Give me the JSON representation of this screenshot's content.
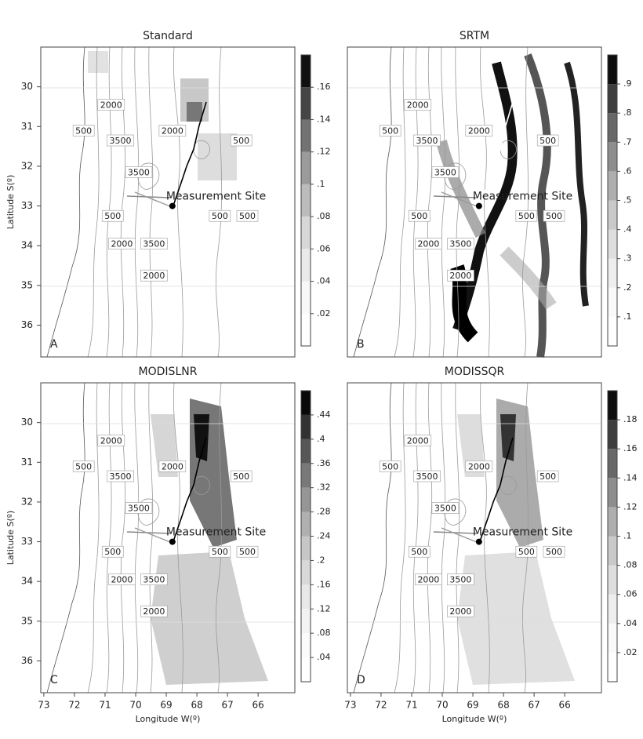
{
  "chart_data": [
    {
      "type": "contour-map",
      "title": "Standard",
      "panel_label": "A",
      "xlim": [
        73.1,
        64.8
      ],
      "ylim": [
        36.8,
        29.0
      ],
      "yticks": [
        30,
        31,
        32,
        33,
        34,
        35,
        36
      ],
      "ylabel": "Latitude S(º)",
      "clim": [
        0,
        0.18
      ],
      "cticks": [
        {
          "value": 0.02,
          "label": ".02"
        },
        {
          "value": 0.04,
          "label": ".04"
        },
        {
          "value": 0.06,
          "label": ".06"
        },
        {
          "value": 0.08,
          "label": ".08"
        },
        {
          "value": 0.1,
          "label": ".1"
        },
        {
          "value": 0.12,
          "label": ".12"
        },
        {
          "value": 0.14,
          "label": ".14"
        },
        {
          "value": 0.16,
          "label": ".16"
        }
      ]
    },
    {
      "type": "contour-map",
      "title": "SRTM",
      "panel_label": "B",
      "xlim": [
        73.1,
        64.8
      ],
      "ylim": [
        36.8,
        29.0
      ],
      "clim": [
        0,
        1.0
      ],
      "cticks": [
        {
          "value": 0.1,
          "label": ".1"
        },
        {
          "value": 0.2,
          "label": ".2"
        },
        {
          "value": 0.3,
          "label": ".3"
        },
        {
          "value": 0.4,
          "label": ".4"
        },
        {
          "value": 0.5,
          "label": ".5"
        },
        {
          "value": 0.6,
          "label": ".6"
        },
        {
          "value": 0.7,
          "label": ".7"
        },
        {
          "value": 0.8,
          "label": ".8"
        },
        {
          "value": 0.9,
          "label": ".9"
        }
      ]
    },
    {
      "type": "contour-map",
      "title": "MODISLNR",
      "panel_label": "C",
      "xlim": [
        73.1,
        64.8
      ],
      "ylim": [
        36.8,
        29.0
      ],
      "xticks": [
        73,
        72,
        71,
        70,
        69,
        68,
        67,
        66
      ],
      "yticks": [
        30,
        31,
        32,
        33,
        34,
        35,
        36
      ],
      "xlabel": "Longitude W(º)",
      "ylabel": "Latitude S(º)",
      "clim": [
        0,
        0.48
      ],
      "cticks": [
        {
          "value": 0.04,
          "label": ".04"
        },
        {
          "value": 0.08,
          "label": ".08"
        },
        {
          "value": 0.12,
          "label": ".12"
        },
        {
          "value": 0.16,
          "label": ".16"
        },
        {
          "value": 0.2,
          "label": ".2"
        },
        {
          "value": 0.24,
          "label": ".24"
        },
        {
          "value": 0.28,
          "label": ".28"
        },
        {
          "value": 0.32,
          "label": ".32"
        },
        {
          "value": 0.36,
          "label": ".36"
        },
        {
          "value": 0.4,
          "label": ".4"
        },
        {
          "value": 0.44,
          "label": ".44"
        }
      ]
    },
    {
      "type": "contour-map",
      "title": "MODISSQR",
      "panel_label": "D",
      "xlim": [
        73.1,
        64.8
      ],
      "ylim": [
        36.8,
        29.0
      ],
      "xticks": [
        73,
        72,
        71,
        70,
        69,
        68,
        67,
        66
      ],
      "xlabel": "Longitude W(º)",
      "clim": [
        0,
        0.2
      ],
      "cticks": [
        {
          "value": 0.02,
          "label": ".02"
        },
        {
          "value": 0.04,
          "label": ".04"
        },
        {
          "value": 0.06,
          "label": ".06"
        },
        {
          "value": 0.08,
          "label": ".08"
        },
        {
          "value": 0.1,
          "label": ".1"
        },
        {
          "value": 0.12,
          "label": ".12"
        },
        {
          "value": 0.14,
          "label": ".14"
        },
        {
          "value": 0.16,
          "label": ".16"
        },
        {
          "value": 0.18,
          "label": ".18"
        }
      ]
    }
  ],
  "contour_labels": [
    {
      "text": "2000",
      "lon": 70.8,
      "lat": 30.45
    },
    {
      "text": "500",
      "lon": 71.7,
      "lat": 31.1
    },
    {
      "text": "3500",
      "lon": 70.5,
      "lat": 31.35
    },
    {
      "text": "2000",
      "lon": 68.8,
      "lat": 31.1
    },
    {
      "text": "500",
      "lon": 66.55,
      "lat": 31.35
    },
    {
      "text": "3500",
      "lon": 69.9,
      "lat": 32.15
    },
    {
      "text": "500",
      "lon": 70.75,
      "lat": 33.25
    },
    {
      "text": "500",
      "lon": 67.25,
      "lat": 33.25
    },
    {
      "text": "500",
      "lon": 66.35,
      "lat": 33.25
    },
    {
      "text": "2000",
      "lon": 70.45,
      "lat": 33.95
    },
    {
      "text": "3500",
      "lon": 69.4,
      "lat": 33.95
    },
    {
      "text": "2000",
      "lon": 69.4,
      "lat": 34.75
    }
  ],
  "site": {
    "text": "Measurement Site",
    "lon": 68.8,
    "lat": 33.0
  }
}
